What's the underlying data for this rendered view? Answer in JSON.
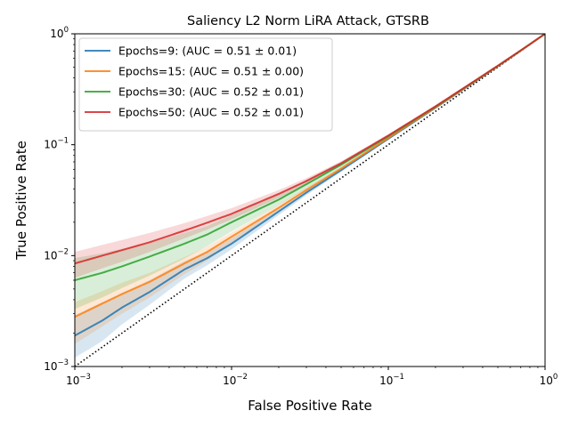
{
  "chart_data": {
    "type": "line",
    "title": "Saliency L2 Norm LiRA Attack, GTSRB",
    "xlabel": "False Positive Rate",
    "ylabel": "True Positive Rate",
    "xscale": "log",
    "yscale": "log",
    "xlim": [
      0.001,
      1
    ],
    "ylim": [
      0.001,
      1
    ],
    "grid": false,
    "legend_position": "top-left",
    "x_ticks": [
      {
        "value": 0.001,
        "base": "10",
        "exp": "−3"
      },
      {
        "value": 0.01,
        "base": "10",
        "exp": "−2"
      },
      {
        "value": 0.1,
        "base": "10",
        "exp": "−1"
      },
      {
        "value": 1,
        "base": "10",
        "exp": "0"
      }
    ],
    "y_ticks": [
      {
        "value": 0.001,
        "base": "10",
        "exp": "−3"
      },
      {
        "value": 0.01,
        "base": "10",
        "exp": "−2"
      },
      {
        "value": 0.1,
        "base": "10",
        "exp": "−1"
      },
      {
        "value": 1,
        "base": "10",
        "exp": "0"
      }
    ],
    "x": [
      0.001,
      0.0015,
      0.002,
      0.003,
      0.005,
      0.007,
      0.01,
      0.02,
      0.03,
      0.05,
      0.1,
      0.2,
      0.3,
      0.5,
      0.7,
      1.0
    ],
    "series": [
      {
        "name": "Epochs=9: (AUC = 0.51 ± 0.01)",
        "color": "#1f77b4",
        "values": [
          0.0019,
          0.0026,
          0.0034,
          0.0047,
          0.0075,
          0.0095,
          0.0128,
          0.025,
          0.037,
          0.059,
          0.113,
          0.215,
          0.315,
          0.51,
          0.705,
          1.0
        ],
        "lower": [
          0.0012,
          0.0017,
          0.0024,
          0.0036,
          0.0062,
          0.0082,
          0.0114,
          0.0232,
          0.035,
          0.057,
          0.111,
          0.213,
          0.313,
          0.508,
          0.703,
          1.0
        ],
        "upper": [
          0.0029,
          0.0038,
          0.0046,
          0.006,
          0.0089,
          0.0109,
          0.0143,
          0.0268,
          0.039,
          0.061,
          0.115,
          0.217,
          0.317,
          0.512,
          0.707,
          1.0
        ]
      },
      {
        "name": "Epochs=15: (AUC = 0.51 ± 0.00)",
        "color": "#ff7f0e",
        "values": [
          0.0028,
          0.0037,
          0.0045,
          0.0058,
          0.0085,
          0.0108,
          0.0148,
          0.027,
          0.039,
          0.061,
          0.115,
          0.217,
          0.317,
          0.512,
          0.706,
          1.0
        ],
        "lower": [
          0.0016,
          0.0023,
          0.003,
          0.0042,
          0.0068,
          0.009,
          0.0128,
          0.0248,
          0.0366,
          0.0585,
          0.1125,
          0.2145,
          0.3145,
          0.5095,
          0.704,
          1.0
        ],
        "upper": [
          0.0038,
          0.0048,
          0.0057,
          0.007,
          0.0097,
          0.0121,
          0.0162,
          0.0287,
          0.041,
          0.063,
          0.117,
          0.219,
          0.319,
          0.514,
          0.708,
          1.0
        ]
      },
      {
        "name": "Epochs=30: (AUC = 0.52 ± 0.01)",
        "color": "#2ca02c",
        "values": [
          0.006,
          0.007,
          0.008,
          0.0098,
          0.0128,
          0.0155,
          0.02,
          0.032,
          0.044,
          0.066,
          0.119,
          0.22,
          0.32,
          0.515,
          0.708,
          1.0
        ],
        "lower": [
          0.0033,
          0.0042,
          0.0051,
          0.0066,
          0.0094,
          0.0122,
          0.0165,
          0.0285,
          0.04,
          0.062,
          0.115,
          0.216,
          0.316,
          0.511,
          0.705,
          1.0
        ],
        "upper": [
          0.0095,
          0.0105,
          0.0115,
          0.013,
          0.016,
          0.0185,
          0.0232,
          0.0355,
          0.048,
          0.07,
          0.123,
          0.224,
          0.324,
          0.519,
          0.711,
          1.0
        ]
      },
      {
        "name": "Epochs=50: (AUC = 0.52 ± 0.01)",
        "color": "#d62728",
        "values": [
          0.0085,
          0.01,
          0.0112,
          0.0132,
          0.0168,
          0.0198,
          0.0238,
          0.036,
          0.047,
          0.068,
          0.121,
          0.222,
          0.322,
          0.516,
          0.709,
          1.0
        ],
        "lower": [
          0.0063,
          0.0077,
          0.0088,
          0.0108,
          0.0143,
          0.0172,
          0.0212,
          0.0332,
          0.044,
          0.065,
          0.118,
          0.219,
          0.319,
          0.513,
          0.707,
          1.0
        ],
        "upper": [
          0.0108,
          0.0125,
          0.0138,
          0.016,
          0.0196,
          0.0228,
          0.0268,
          0.039,
          0.05,
          0.071,
          0.124,
          0.225,
          0.325,
          0.519,
          0.711,
          1.0
        ]
      }
    ],
    "reference_line": {
      "x": [
        0.001,
        1
      ],
      "y": [
        0.001,
        1
      ],
      "color": "#000000",
      "style": "dotted"
    }
  }
}
